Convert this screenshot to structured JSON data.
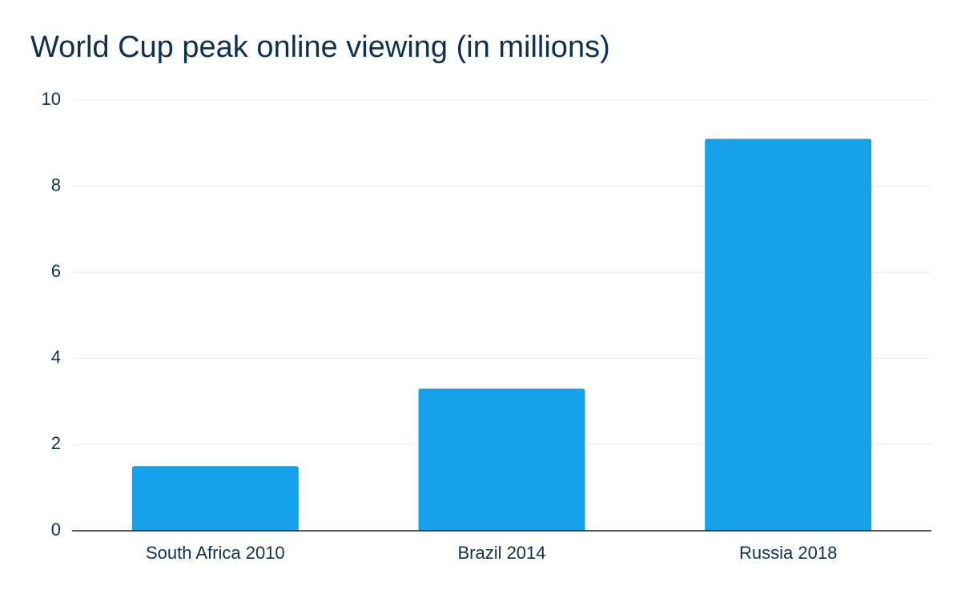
{
  "chart_data": {
    "type": "bar",
    "title": "World Cup peak online viewing (in millions)",
    "categories": [
      "South Africa 2010",
      "Brazil 2014",
      "Russia 2018"
    ],
    "values": [
      1.5,
      3.3,
      9.1
    ],
    "ylim": [
      0,
      10
    ],
    "yticks": [
      0,
      2,
      4,
      6,
      8,
      10
    ],
    "xlabel": "",
    "ylabel": "",
    "grid": true,
    "legend": "none",
    "colors": {
      "bar": "#14a3eb",
      "grid": "#ececec",
      "axis": "#222222",
      "text": "#0e3150"
    }
  }
}
